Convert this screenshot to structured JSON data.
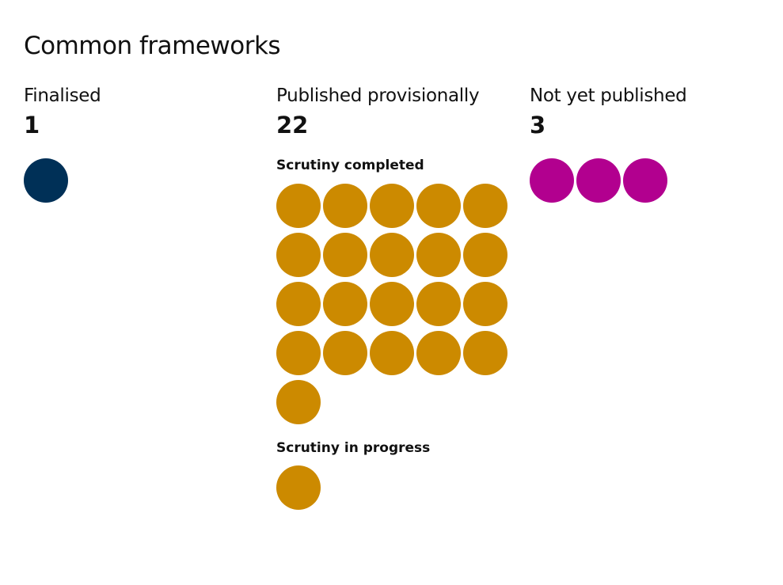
{
  "title": "Common frameworks",
  "chart_data": {
    "type": "unit",
    "title": "Common frameworks",
    "columns": [
      {
        "key": "finalised",
        "label": "Finalised",
        "count": "1",
        "color": "#003057",
        "groups": [
          {
            "label": "",
            "value": 1
          }
        ]
      },
      {
        "key": "published_provisionally",
        "label": "Published provisionally",
        "count": "22",
        "color": "#cc8a00",
        "groups": [
          {
            "label": "Scrutiny completed",
            "value": 21
          },
          {
            "label": "Scrutiny in progress",
            "value": 1
          }
        ]
      },
      {
        "key": "not_yet_published",
        "label": "Not yet published",
        "count": "3",
        "color": "#b2008f",
        "groups": [
          {
            "label": "",
            "value": 3
          }
        ]
      }
    ]
  }
}
